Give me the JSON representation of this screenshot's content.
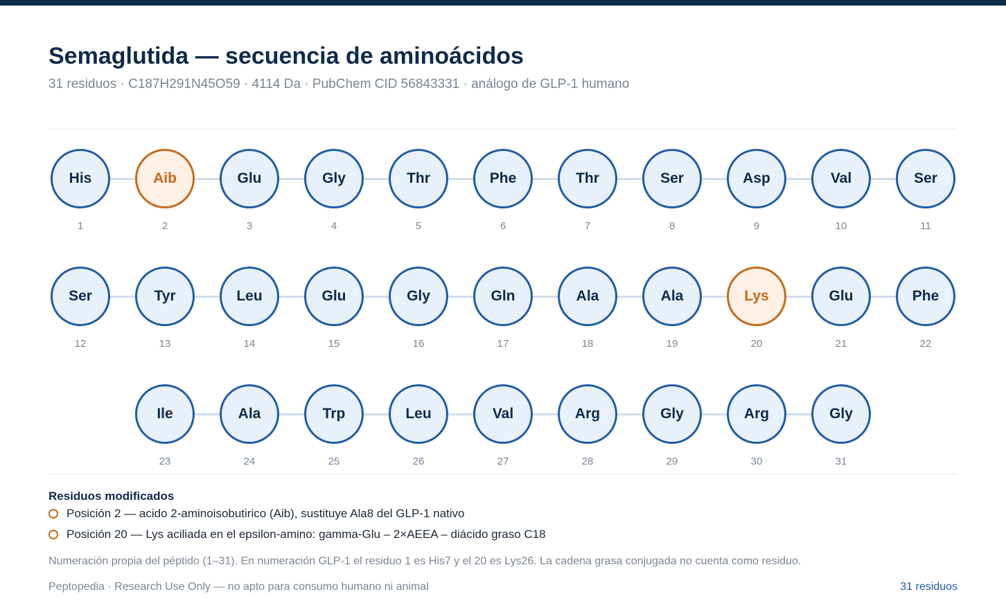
{
  "header": {
    "title": "Semaglutida — secuencia de aminoácidos",
    "subtitle": "31 residuos · C187H291N45O59 · 4114 Da · PubChem CID 56843331 · análogo de GLP-1 humano"
  },
  "sequence": [
    {
      "pos": "1",
      "res": "His",
      "modified": false
    },
    {
      "pos": "2",
      "res": "Aib",
      "modified": true
    },
    {
      "pos": "3",
      "res": "Glu",
      "modified": false
    },
    {
      "pos": "4",
      "res": "Gly",
      "modified": false
    },
    {
      "pos": "5",
      "res": "Thr",
      "modified": false
    },
    {
      "pos": "6",
      "res": "Phe",
      "modified": false
    },
    {
      "pos": "7",
      "res": "Thr",
      "modified": false
    },
    {
      "pos": "8",
      "res": "Ser",
      "modified": false
    },
    {
      "pos": "9",
      "res": "Asp",
      "modified": false
    },
    {
      "pos": "10",
      "res": "Val",
      "modified": false
    },
    {
      "pos": "11",
      "res": "Ser",
      "modified": false
    },
    {
      "pos": "12",
      "res": "Ser",
      "modified": false
    },
    {
      "pos": "13",
      "res": "Tyr",
      "modified": false
    },
    {
      "pos": "14",
      "res": "Leu",
      "modified": false
    },
    {
      "pos": "15",
      "res": "Glu",
      "modified": false
    },
    {
      "pos": "16",
      "res": "Gly",
      "modified": false
    },
    {
      "pos": "17",
      "res": "Gln",
      "modified": false
    },
    {
      "pos": "18",
      "res": "Ala",
      "modified": false
    },
    {
      "pos": "19",
      "res": "Ala",
      "modified": false
    },
    {
      "pos": "20",
      "res": "Lys",
      "modified": true
    },
    {
      "pos": "21",
      "res": "Glu",
      "modified": false
    },
    {
      "pos": "22",
      "res": "Phe",
      "modified": false
    },
    {
      "pos": "23",
      "res": "Ile",
      "modified": false
    },
    {
      "pos": "24",
      "res": "Ala",
      "modified": false
    },
    {
      "pos": "25",
      "res": "Trp",
      "modified": false
    },
    {
      "pos": "26",
      "res": "Leu",
      "modified": false
    },
    {
      "pos": "27",
      "res": "Val",
      "modified": false
    },
    {
      "pos": "28",
      "res": "Arg",
      "modified": false
    },
    {
      "pos": "29",
      "res": "Gly",
      "modified": false
    },
    {
      "pos": "30",
      "res": "Arg",
      "modified": false
    },
    {
      "pos": "31",
      "res": "Gly",
      "modified": false
    }
  ],
  "legend": {
    "title": "Residuos modificados",
    "items": [
      "Posición 2 — acido 2-aminoisobutirico (Aib), sustituye Ala8 del GLP-1 nativo",
      "Posición 20 — Lys aciliada en el epsilon-amino: gamma-Glu – 2×AEEA – diácido graso C18"
    ]
  },
  "note": "Numeración propia del péptido (1–31). En numeración GLP-1 el residuo 1 es His7 y el 20 es Lys26. La cadena grasa conjugada no cuenta como residuo.",
  "footer": {
    "left": "Peptopedia · Research Use Only — no apto para consumo humano ni animal",
    "right": "31 residuos"
  },
  "colors": {
    "standard_border": "#1f5ca3",
    "standard_fill": "#e8f0fa",
    "modified_border": "#c46a1c",
    "modified_fill": "#fdf0e4"
  }
}
